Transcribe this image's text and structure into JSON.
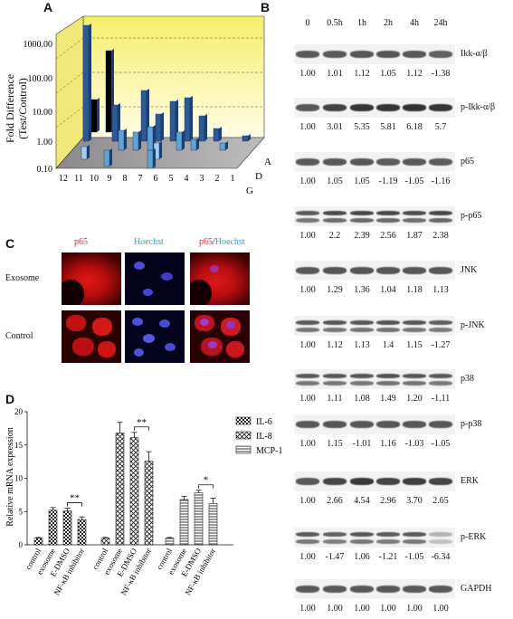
{
  "panels": {
    "a": "A",
    "b": "B",
    "c": "C",
    "d": "D"
  },
  "panel_a": {
    "ylabel": "Fold Difference\n(Test/Control)",
    "yticks": [
      "1000.00",
      "100.00",
      "10.00",
      "1.00",
      "0.10"
    ],
    "xticks": [
      "12",
      "11",
      "10",
      "9",
      "8",
      "7",
      "6",
      "5",
      "4",
      "3",
      "2",
      "1"
    ],
    "zticks": [
      "G",
      "D",
      "A"
    ]
  },
  "panel_b": {
    "timepoints": [
      "0",
      "0.5h",
      "1h",
      "2h",
      "4h",
      "24h"
    ],
    "blots": [
      {
        "name": "Ikk-α/β",
        "values": [
          "1.00",
          "1.01",
          "1.12",
          "1.05",
          "1.12",
          "-1.38"
        ]
      },
      {
        "name": "p-Ikk-α/β",
        "values": [
          "1.00",
          "3.01",
          "5.35",
          "5.81",
          "6.18",
          "5.7"
        ]
      },
      {
        "name": "p65",
        "values": [
          "1.00",
          "1.05",
          "1.05",
          "-1.19",
          "-1.05",
          "-1.16"
        ]
      },
      {
        "name": "p-p65",
        "values": [
          "1.00",
          "2.2",
          "2.39",
          "2.56",
          "1.87",
          "2.38"
        ]
      },
      {
        "name": "JNK",
        "values": [
          "1.00",
          "1.29",
          "1.36",
          "1.04",
          "1.18",
          "1.13"
        ]
      },
      {
        "name": "p-JNK",
        "values": [
          "1.00",
          "1.12",
          "1.13",
          "1.4",
          "1.15",
          "-1.27"
        ]
      },
      {
        "name": "p38",
        "values": [
          "1.00",
          "1.11",
          "1.08",
          "1.49",
          "1.20",
          "-1.11"
        ]
      },
      {
        "name": "p-p38",
        "values": [
          "1.00",
          "1.15",
          "-1.01",
          "1.16",
          "-1.03",
          "-1.05"
        ]
      },
      {
        "name": "ERK",
        "values": [
          "1.00",
          "2.66",
          "4.54",
          "2.96",
          "3.70",
          "2.65"
        ]
      },
      {
        "name": "p-ERK",
        "values": [
          "1.00",
          "-1.47",
          "1.06",
          "-1.21",
          "-1.05",
          "-6.34"
        ]
      },
      {
        "name": "GAPDH",
        "values": [
          "1.00",
          "1.00",
          "1.00",
          "1.00",
          "1.00",
          "1.00"
        ]
      }
    ]
  },
  "panel_c": {
    "col_p65": "p65",
    "col_hoechst": "Hoechst",
    "col_merge_p65": "p65",
    "col_merge_sep": "/",
    "col_merge_hoechst": "Hoechst",
    "row_exosome": "Exosome",
    "row_control": "Control"
  },
  "chart_data": {
    "type": "bar",
    "title": "",
    "xlabel": "",
    "ylabel": "Relative mRNA expression",
    "ylim": [
      0,
      20
    ],
    "yticks": [
      "0",
      "5",
      "10",
      "15",
      "20"
    ],
    "groups": [
      "IL-6",
      "IL-8",
      "MCP-1"
    ],
    "categories": [
      "control",
      "exosome",
      "E-DMSO",
      "NF-κB inhibitor"
    ],
    "series": [
      {
        "name": "IL-6",
        "values": [
          1.0,
          5.2,
          5.1,
          3.8
        ],
        "errors": [
          0.1,
          0.4,
          0.4,
          0.4
        ]
      },
      {
        "name": "IL-8",
        "values": [
          1.0,
          16.8,
          16.1,
          12.6
        ],
        "errors": [
          0.1,
          1.6,
          0.8,
          1.4
        ]
      },
      {
        "name": "MCP-1",
        "values": [
          1.0,
          6.8,
          7.8,
          6.2
        ],
        "errors": [
          0.1,
          0.5,
          0.4,
          0.8
        ]
      }
    ],
    "significance": [
      "**",
      "**",
      "*"
    ],
    "legend": [
      "IL-6",
      "IL-8",
      "MCP-1"
    ],
    "legend_position": "right",
    "colors": {
      "bar_outline": "#222222",
      "text": "#111111"
    }
  }
}
